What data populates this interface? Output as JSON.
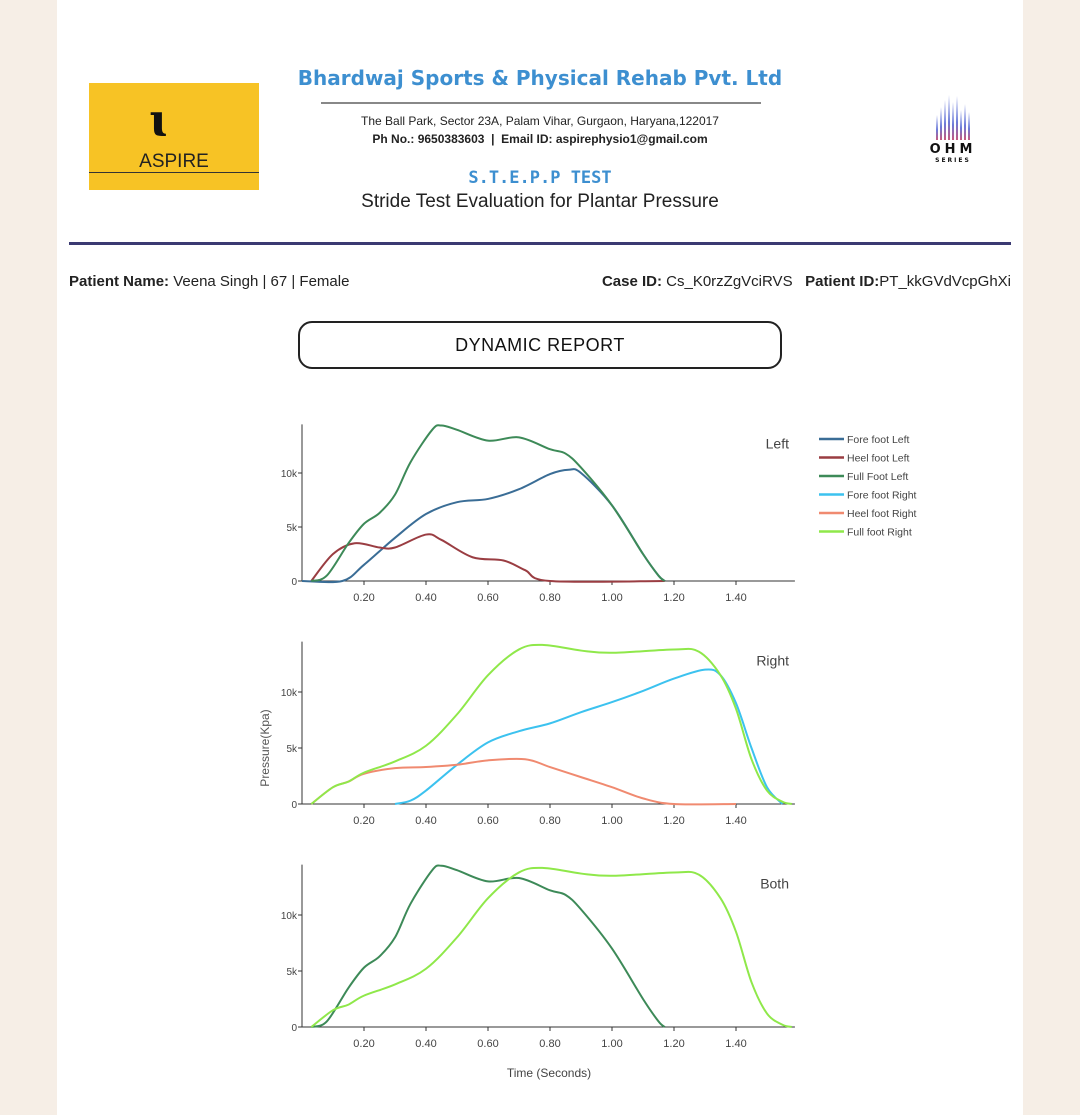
{
  "header": {
    "logo_left_text": "ASPIRE",
    "logo_right_text": "OHM",
    "logo_right_sub": "SERIES",
    "company": "Bhardwaj Sports & Physical Rehab Pvt. Ltd",
    "address": "The Ball Park, Sector 23A, Palam Vihar, Gurgaon, Haryana,122017",
    "phone_label": "Ph No.:",
    "phone": "9650383603",
    "email_label": "Email ID:",
    "email": "aspirephysio1@gmail.com",
    "test_name": "S.T.E.P.P TEST",
    "test_full": "Stride Test Evaluation for Plantar Pressure"
  },
  "patient": {
    "name_label": "Patient Name:",
    "name": "Veena Singh | 67 | Female",
    "case_label": "Case ID:",
    "case_id": "Cs_K0rzZgVciRVS",
    "pid_label": "Patient ID:",
    "patient_id": "PT_kkGVdVcpGhXi"
  },
  "report_title": "DYNAMIC  REPORT",
  "colors": {
    "Fore foot Left": "#3a6d96",
    "Heel foot Left": "#9a3d42",
    "Full Foot Left": "#3d8a58",
    "Fore foot Right": "#3cc2ef",
    "Heel foot Right": "#f08a70",
    "Full foot Right": "#8fe84a"
  },
  "chart_data": [
    {
      "type": "line",
      "title": "Left",
      "xlim": [
        0,
        1.59
      ],
      "ylim": [
        0,
        14500
      ],
      "xticks": [
        "0.20",
        "0.40",
        "0.60",
        "0.80",
        "1.00",
        "1.20",
        "1.40"
      ],
      "yticks": [
        "0",
        "5k",
        "10k"
      ],
      "legend": [
        "Fore foot Left",
        "Heel foot Left",
        "Full Foot Left",
        "Fore foot Right",
        "Heel foot Right",
        "Full foot Right"
      ],
      "legend_placement": "right",
      "series": [
        {
          "name": "Fore foot Left",
          "points": [
            [
              0,
              0
            ],
            [
              0.13,
              0
            ],
            [
              0.2,
              1500
            ],
            [
              0.3,
              4000
            ],
            [
              0.4,
              6200
            ],
            [
              0.5,
              7300
            ],
            [
              0.6,
              7600
            ],
            [
              0.7,
              8500
            ],
            [
              0.8,
              9900
            ],
            [
              0.86,
              10300
            ],
            [
              0.9,
              10000
            ],
            [
              1.0,
              7000
            ],
            [
              1.1,
              2500
            ],
            [
              1.15,
              500
            ],
            [
              1.17,
              0
            ]
          ]
        },
        {
          "name": "Heel foot Left",
          "points": [
            [
              0.03,
              0
            ],
            [
              0.1,
              2500
            ],
            [
              0.17,
              3500
            ],
            [
              0.25,
              3100
            ],
            [
              0.3,
              3100
            ],
            [
              0.4,
              4300
            ],
            [
              0.45,
              3800
            ],
            [
              0.55,
              2200
            ],
            [
              0.65,
              1900
            ],
            [
              0.72,
              1000
            ],
            [
              0.8,
              0
            ],
            [
              1.17,
              0
            ]
          ]
        },
        {
          "name": "Full Foot Left",
          "points": [
            [
              0.03,
              0
            ],
            [
              0.08,
              500
            ],
            [
              0.15,
              3500
            ],
            [
              0.2,
              5300
            ],
            [
              0.25,
              6300
            ],
            [
              0.3,
              8000
            ],
            [
              0.35,
              11000
            ],
            [
              0.42,
              14000
            ],
            [
              0.45,
              14400
            ],
            [
              0.5,
              14000
            ],
            [
              0.6,
              13000
            ],
            [
              0.7,
              13300
            ],
            [
              0.8,
              12200
            ],
            [
              0.85,
              11800
            ],
            [
              0.9,
              10500
            ],
            [
              1.0,
              7000
            ],
            [
              1.1,
              2500
            ],
            [
              1.15,
              500
            ],
            [
              1.17,
              0
            ]
          ]
        }
      ]
    },
    {
      "type": "line",
      "title": "Right",
      "ylabel": "Pressure(Kpa)",
      "xlim": [
        0,
        1.59
      ],
      "ylim": [
        0,
        14500
      ],
      "xticks": [
        "0.20",
        "0.40",
        "0.60",
        "0.80",
        "1.00",
        "1.20",
        "1.40"
      ],
      "yticks": [
        "0",
        "5k",
        "10k"
      ],
      "series": [
        {
          "name": "Fore foot Right",
          "points": [
            [
              0.3,
              0
            ],
            [
              0.35,
              300
            ],
            [
              0.4,
              1200
            ],
            [
              0.5,
              3500
            ],
            [
              0.6,
              5500
            ],
            [
              0.7,
              6500
            ],
            [
              0.8,
              7200
            ],
            [
              0.9,
              8200
            ],
            [
              1.0,
              9100
            ],
            [
              1.1,
              10100
            ],
            [
              1.2,
              11200
            ],
            [
              1.3,
              12000
            ],
            [
              1.35,
              11500
            ],
            [
              1.4,
              9000
            ],
            [
              1.45,
              5000
            ],
            [
              1.5,
              1500
            ],
            [
              1.55,
              0
            ]
          ]
        },
        {
          "name": "Heel foot Right",
          "points": [
            [
              0.03,
              0
            ],
            [
              0.1,
              1500
            ],
            [
              0.15,
              2000
            ],
            [
              0.2,
              2700
            ],
            [
              0.3,
              3200
            ],
            [
              0.4,
              3300
            ],
            [
              0.5,
              3500
            ],
            [
              0.6,
              3900
            ],
            [
              0.72,
              4000
            ],
            [
              0.8,
              3300
            ],
            [
              0.9,
              2400
            ],
            [
              1.0,
              1500
            ],
            [
              1.1,
              500
            ],
            [
              1.2,
              0
            ],
            [
              1.4,
              0
            ]
          ]
        },
        {
          "name": "Full foot Right",
          "points": [
            [
              0.03,
              0
            ],
            [
              0.1,
              1500
            ],
            [
              0.15,
              2000
            ],
            [
              0.2,
              2800
            ],
            [
              0.3,
              3800
            ],
            [
              0.4,
              5200
            ],
            [
              0.5,
              8000
            ],
            [
              0.6,
              11500
            ],
            [
              0.7,
              13800
            ],
            [
              0.78,
              14200
            ],
            [
              0.9,
              13700
            ],
            [
              1.0,
              13500
            ],
            [
              1.2,
              13800
            ],
            [
              1.28,
              13600
            ],
            [
              1.35,
              11500
            ],
            [
              1.4,
              8500
            ],
            [
              1.45,
              4000
            ],
            [
              1.5,
              1200
            ],
            [
              1.55,
              200
            ],
            [
              1.58,
              0
            ]
          ]
        }
      ]
    },
    {
      "type": "line",
      "title": "Both",
      "xlabel": "Time (Seconds)",
      "xlim": [
        0,
        1.59
      ],
      "ylim": [
        0,
        14500
      ],
      "xticks": [
        "0.20",
        "0.40",
        "0.60",
        "0.80",
        "1.00",
        "1.20",
        "1.40"
      ],
      "yticks": [
        "0",
        "5k",
        "10k"
      ],
      "series": [
        {
          "name": "Full Foot Left",
          "points": [
            [
              0.03,
              0
            ],
            [
              0.08,
              500
            ],
            [
              0.15,
              3500
            ],
            [
              0.2,
              5300
            ],
            [
              0.25,
              6300
            ],
            [
              0.3,
              8000
            ],
            [
              0.35,
              11000
            ],
            [
              0.42,
              14000
            ],
            [
              0.45,
              14400
            ],
            [
              0.5,
              14000
            ],
            [
              0.6,
              13000
            ],
            [
              0.7,
              13300
            ],
            [
              0.8,
              12200
            ],
            [
              0.85,
              11800
            ],
            [
              0.9,
              10500
            ],
            [
              1.0,
              7000
            ],
            [
              1.1,
              2500
            ],
            [
              1.15,
              500
            ],
            [
              1.17,
              0
            ]
          ]
        },
        {
          "name": "Full foot Right",
          "points": [
            [
              0.03,
              0
            ],
            [
              0.1,
              1500
            ],
            [
              0.15,
              2000
            ],
            [
              0.2,
              2800
            ],
            [
              0.3,
              3800
            ],
            [
              0.4,
              5200
            ],
            [
              0.5,
              8000
            ],
            [
              0.6,
              11500
            ],
            [
              0.7,
              13800
            ],
            [
              0.78,
              14200
            ],
            [
              0.9,
              13700
            ],
            [
              1.0,
              13500
            ],
            [
              1.2,
              13800
            ],
            [
              1.28,
              13600
            ],
            [
              1.35,
              11500
            ],
            [
              1.4,
              8500
            ],
            [
              1.45,
              4000
            ],
            [
              1.5,
              1200
            ],
            [
              1.55,
              200
            ],
            [
              1.58,
              0
            ]
          ]
        }
      ]
    }
  ]
}
